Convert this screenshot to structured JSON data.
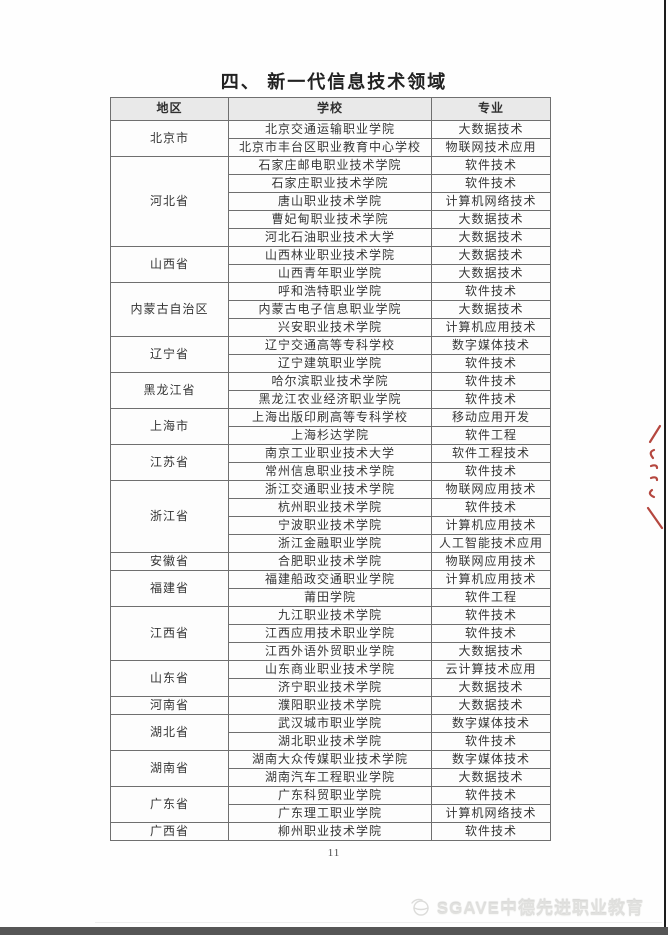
{
  "page": {
    "title": "四、 新一代信息技术领域",
    "page_number": "11",
    "annotation": "red-pen-mark",
    "footer": {
      "brand": "SGAVE中德先进职业教育",
      "logo": "sgave-globe-logo"
    }
  },
  "colors": {
    "header_bg": "#e9e9e9",
    "table_border": "#6f6f6f",
    "text": "#353535",
    "red_annotation": "#b5473f",
    "footer_text": "#e0e0de",
    "scan_edge": "#1c1c1c",
    "scan_bottom_bar": "#565656"
  },
  "table": {
    "headers": [
      "地区",
      "学校",
      "专业"
    ],
    "regions": [
      {
        "region": "北京市",
        "schools": [
          {
            "school": "北京交通运输职业学院",
            "major": "大数据技术"
          },
          {
            "school": "北京市丰台区职业教育中心学校",
            "major": "物联网技术应用"
          }
        ]
      },
      {
        "region": "河北省",
        "schools": [
          {
            "school": "石家庄邮电职业技术学院",
            "major": "软件技术"
          },
          {
            "school": "石家庄职业技术学院",
            "major": "软件技术"
          },
          {
            "school": "唐山职业技术学院",
            "major": "计算机网络技术"
          },
          {
            "school": "曹妃甸职业技术学院",
            "major": "大数据技术"
          },
          {
            "school": "河北石油职业技术大学",
            "major": "大数据技术"
          }
        ]
      },
      {
        "region": "山西省",
        "schools": [
          {
            "school": "山西林业职业技术学院",
            "major": "大数据技术"
          },
          {
            "school": "山西青年职业学院",
            "major": "大数据技术"
          }
        ]
      },
      {
        "region": "内蒙古自治区",
        "schools": [
          {
            "school": "呼和浩特职业学院",
            "major": "软件技术"
          },
          {
            "school": "内蒙古电子信息职业学院",
            "major": "大数据技术"
          },
          {
            "school": "兴安职业技术学院",
            "major": "计算机应用技术"
          }
        ]
      },
      {
        "region": "辽宁省",
        "schools": [
          {
            "school": "辽宁交通高等专科学校",
            "major": "数字媒体技术"
          },
          {
            "school": "辽宁建筑职业学院",
            "major": "软件技术"
          }
        ]
      },
      {
        "region": "黑龙江省",
        "schools": [
          {
            "school": "哈尔滨职业技术学院",
            "major": "软件技术"
          },
          {
            "school": "黑龙江农业经济职业学院",
            "major": "软件技术"
          }
        ]
      },
      {
        "region": "上海市",
        "schools": [
          {
            "school": "上海出版印刷高等专科学校",
            "major": "移动应用开发"
          },
          {
            "school": "上海杉达学院",
            "major": "软件工程"
          }
        ]
      },
      {
        "region": "江苏省",
        "schools": [
          {
            "school": "南京工业职业技术大学",
            "major": "软件工程技术"
          },
          {
            "school": "常州信息职业技术学院",
            "major": "软件技术"
          }
        ]
      },
      {
        "region": "浙江省",
        "schools": [
          {
            "school": "浙江交通职业技术学院",
            "major": "物联网应用技术"
          },
          {
            "school": "杭州职业技术学院",
            "major": "软件技术"
          },
          {
            "school": "宁波职业技术学院",
            "major": "计算机应用技术"
          },
          {
            "school": "浙江金融职业学院",
            "major": "人工智能技术应用"
          }
        ]
      },
      {
        "region": "安徽省",
        "schools": [
          {
            "school": "合肥职业技术学院",
            "major": "物联网应用技术"
          }
        ]
      },
      {
        "region": "福建省",
        "schools": [
          {
            "school": "福建船政交通职业学院",
            "major": "计算机应用技术"
          },
          {
            "school": "莆田学院",
            "major": "软件工程"
          }
        ]
      },
      {
        "region": "江西省",
        "schools": [
          {
            "school": "九江职业技术学院",
            "major": "软件技术"
          },
          {
            "school": "江西应用技术职业学院",
            "major": "软件技术"
          },
          {
            "school": "江西外语外贸职业学院",
            "major": "大数据技术"
          }
        ]
      },
      {
        "region": "山东省",
        "schools": [
          {
            "school": "山东商业职业技术学院",
            "major": "云计算技术应用"
          },
          {
            "school": "济宁职业技术学院",
            "major": "大数据技术"
          }
        ]
      },
      {
        "region": "河南省",
        "schools": [
          {
            "school": "濮阳职业技术学院",
            "major": "大数据技术"
          }
        ]
      },
      {
        "region": "湖北省",
        "schools": [
          {
            "school": "武汉城市职业学院",
            "major": "数字媒体技术"
          },
          {
            "school": "湖北职业技术学院",
            "major": "软件技术"
          }
        ]
      },
      {
        "region": "湖南省",
        "schools": [
          {
            "school": "湖南大众传媒职业技术学院",
            "major": "数字媒体技术"
          },
          {
            "school": "湖南汽车工程职业学院",
            "major": "大数据技术"
          }
        ]
      },
      {
        "region": "广东省",
        "schools": [
          {
            "school": "广东科贸职业学院",
            "major": "软件技术"
          },
          {
            "school": "广东理工职业学院",
            "major": "计算机网络技术"
          }
        ]
      },
      {
        "region": "广西省",
        "schools": [
          {
            "school": "柳州职业技术学院",
            "major": "软件技术"
          }
        ]
      }
    ]
  }
}
